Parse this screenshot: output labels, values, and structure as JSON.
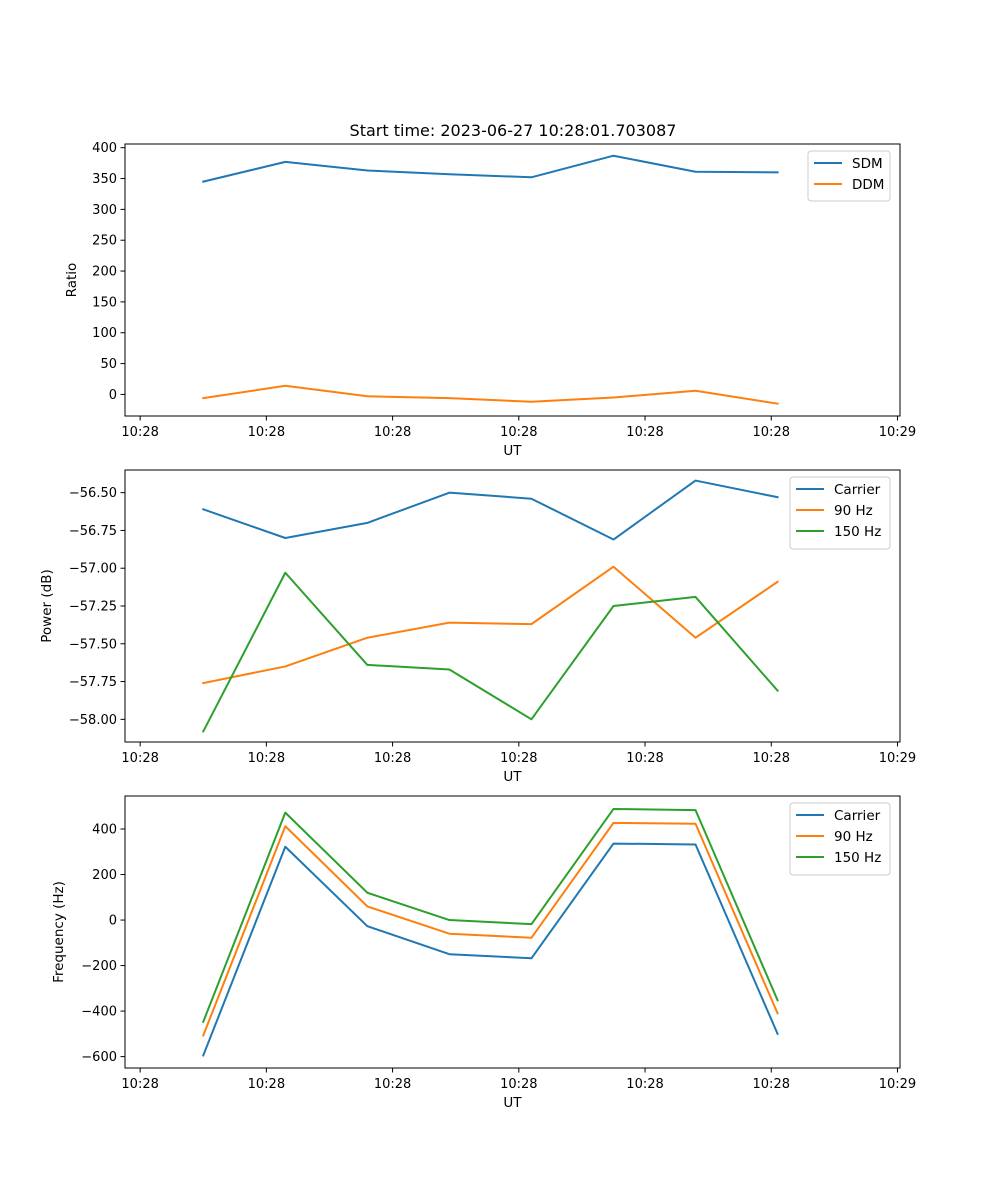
{
  "title": "Start time: 2023-06-27 10:28:01.703087",
  "chart_data": [
    {
      "type": "line",
      "title": "Start time: 2023-06-27 10:28:01.703087",
      "xlabel": "UT",
      "ylabel": "Ratio",
      "xticks": [
        0,
        5,
        10,
        15,
        20,
        25,
        30
      ],
      "xtick_labels": [
        "10:28",
        "10:28",
        "10:28",
        "10:28",
        "10:28",
        "10:28",
        "10:29"
      ],
      "xlim": [
        -0.6,
        30.1
      ],
      "x": [
        2.5,
        5.75,
        9.0,
        12.25,
        15.5,
        18.75,
        22.0,
        25.25
      ],
      "yticks": [
        0,
        50,
        100,
        150,
        200,
        250,
        300,
        350,
        400
      ],
      "ytick_labels": [
        "0",
        "50",
        "100",
        "150",
        "200",
        "250",
        "300",
        "350",
        "400"
      ],
      "ylim": [
        -35,
        406
      ],
      "legend_position": "top-right",
      "series": [
        {
          "name": "SDM",
          "color": "#1f77b4",
          "values": [
            345,
            377,
            363,
            357,
            352,
            387,
            361,
            360
          ]
        },
        {
          "name": "DDM",
          "color": "#ff7f0e",
          "values": [
            -6,
            14,
            -3,
            -6,
            -12,
            -5,
            6,
            -15
          ]
        }
      ]
    },
    {
      "type": "line",
      "title": "",
      "xlabel": "UT",
      "ylabel": "Power (dB)",
      "xticks": [
        0,
        5,
        10,
        15,
        20,
        25,
        30
      ],
      "xtick_labels": [
        "10:28",
        "10:28",
        "10:28",
        "10:28",
        "10:28",
        "10:28",
        "10:29"
      ],
      "xlim": [
        -0.6,
        30.1
      ],
      "x": [
        2.5,
        5.75,
        9.0,
        12.25,
        15.5,
        18.75,
        22.0,
        25.25
      ],
      "yticks": [
        -58.0,
        -57.75,
        -57.5,
        -57.25,
        -57.0,
        -56.75,
        -56.5
      ],
      "ytick_labels": [
        "−58.00",
        "−57.75",
        "−57.50",
        "−57.25",
        "−57.00",
        "−56.75",
        "−56.50"
      ],
      "ylim": [
        -58.15,
        -56.35
      ],
      "legend_position": "top-right",
      "series": [
        {
          "name": "Carrier",
          "color": "#1f77b4",
          "values": [
            -56.61,
            -56.8,
            -56.7,
            -56.5,
            -56.54,
            -56.81,
            -56.42,
            -56.53
          ]
        },
        {
          "name": "90 Hz",
          "color": "#ff7f0e",
          "values": [
            -57.76,
            -57.65,
            -57.46,
            -57.36,
            -57.37,
            -56.99,
            -57.46,
            -57.09
          ]
        },
        {
          "name": "150 Hz",
          "color": "#2ca02c",
          "values": [
            -58.08,
            -57.03,
            -57.64,
            -57.67,
            -58.0,
            -57.25,
            -57.19,
            -57.81
          ]
        }
      ]
    },
    {
      "type": "line",
      "title": "",
      "xlabel": "UT",
      "ylabel": "Frequency (Hz)",
      "xticks": [
        0,
        5,
        10,
        15,
        20,
        25,
        30
      ],
      "xtick_labels": [
        "10:28",
        "10:28",
        "10:28",
        "10:28",
        "10:28",
        "10:28",
        "10:29"
      ],
      "xlim": [
        -0.6,
        30.1
      ],
      "x": [
        2.5,
        5.75,
        9.0,
        12.25,
        15.5,
        18.75,
        22.0,
        25.25
      ],
      "yticks": [
        -600,
        -400,
        -200,
        0,
        200,
        400
      ],
      "ytick_labels": [
        "−600",
        "−400",
        "−200",
        "0",
        "200",
        "400"
      ],
      "ylim": [
        -650,
        545
      ],
      "legend_position": "top-right",
      "series": [
        {
          "name": "Carrier",
          "color": "#1f77b4",
          "values": [
            -595,
            322,
            -27,
            -150,
            -168,
            336,
            332,
            -500
          ]
        },
        {
          "name": "90 Hz",
          "color": "#ff7f0e",
          "values": [
            -507,
            412,
            60,
            -60,
            -78,
            427,
            423,
            -410
          ]
        },
        {
          "name": "150 Hz",
          "color": "#2ca02c",
          "values": [
            -447,
            472,
            120,
            0,
            -18,
            488,
            483,
            -352
          ]
        }
      ]
    }
  ]
}
